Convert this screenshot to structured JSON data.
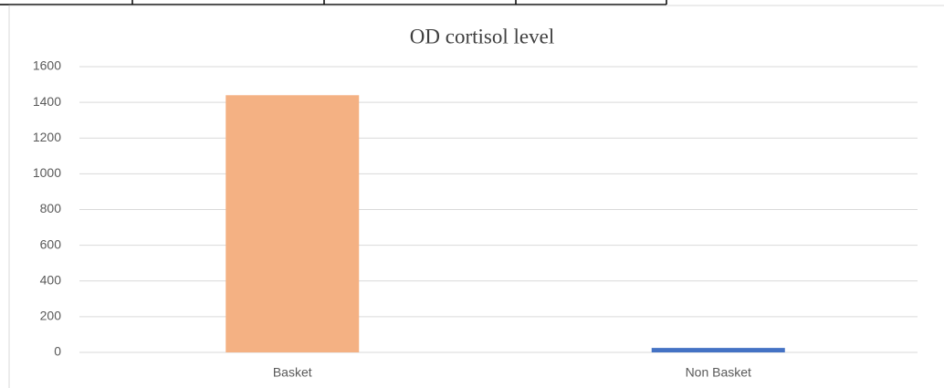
{
  "chart_data": {
    "type": "bar",
    "title": "OD cortisol  level",
    "categories": [
      "Basket",
      "Non Basket"
    ],
    "values": [
      1440,
      25
    ],
    "colors": [
      "#f4b183",
      "#4472c4"
    ],
    "ylim": [
      0,
      1600
    ],
    "yticks": [
      0,
      200,
      400,
      600,
      800,
      1000,
      1200,
      1400,
      1600
    ],
    "grid": true
  }
}
